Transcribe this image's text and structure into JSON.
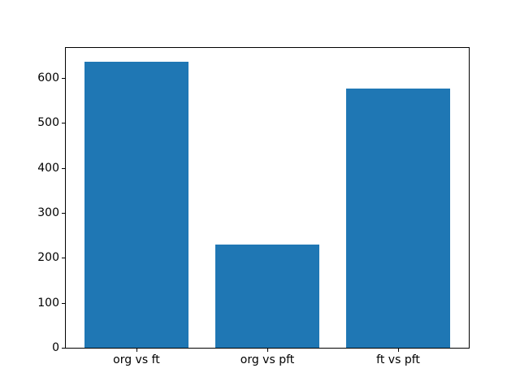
{
  "figure": {
    "background_color": "#ffffff",
    "axes_background_color": "#ffffff",
    "spine_color": "#000000",
    "tick_label_color": "#000000"
  },
  "chart_data": {
    "type": "bar",
    "categories": [
      "org vs ft",
      "org vs pft",
      "ft vs pft"
    ],
    "values": [
      636,
      230,
      576
    ],
    "bar_color": "#1f77b4",
    "bar_width": 0.8,
    "xlim": [
      -0.54,
      2.54
    ],
    "ylim": [
      0,
      667
    ],
    "yticks": [
      0,
      100,
      200,
      300,
      400,
      500,
      600
    ],
    "grid": false,
    "legend": "none",
    "title": ""
  }
}
